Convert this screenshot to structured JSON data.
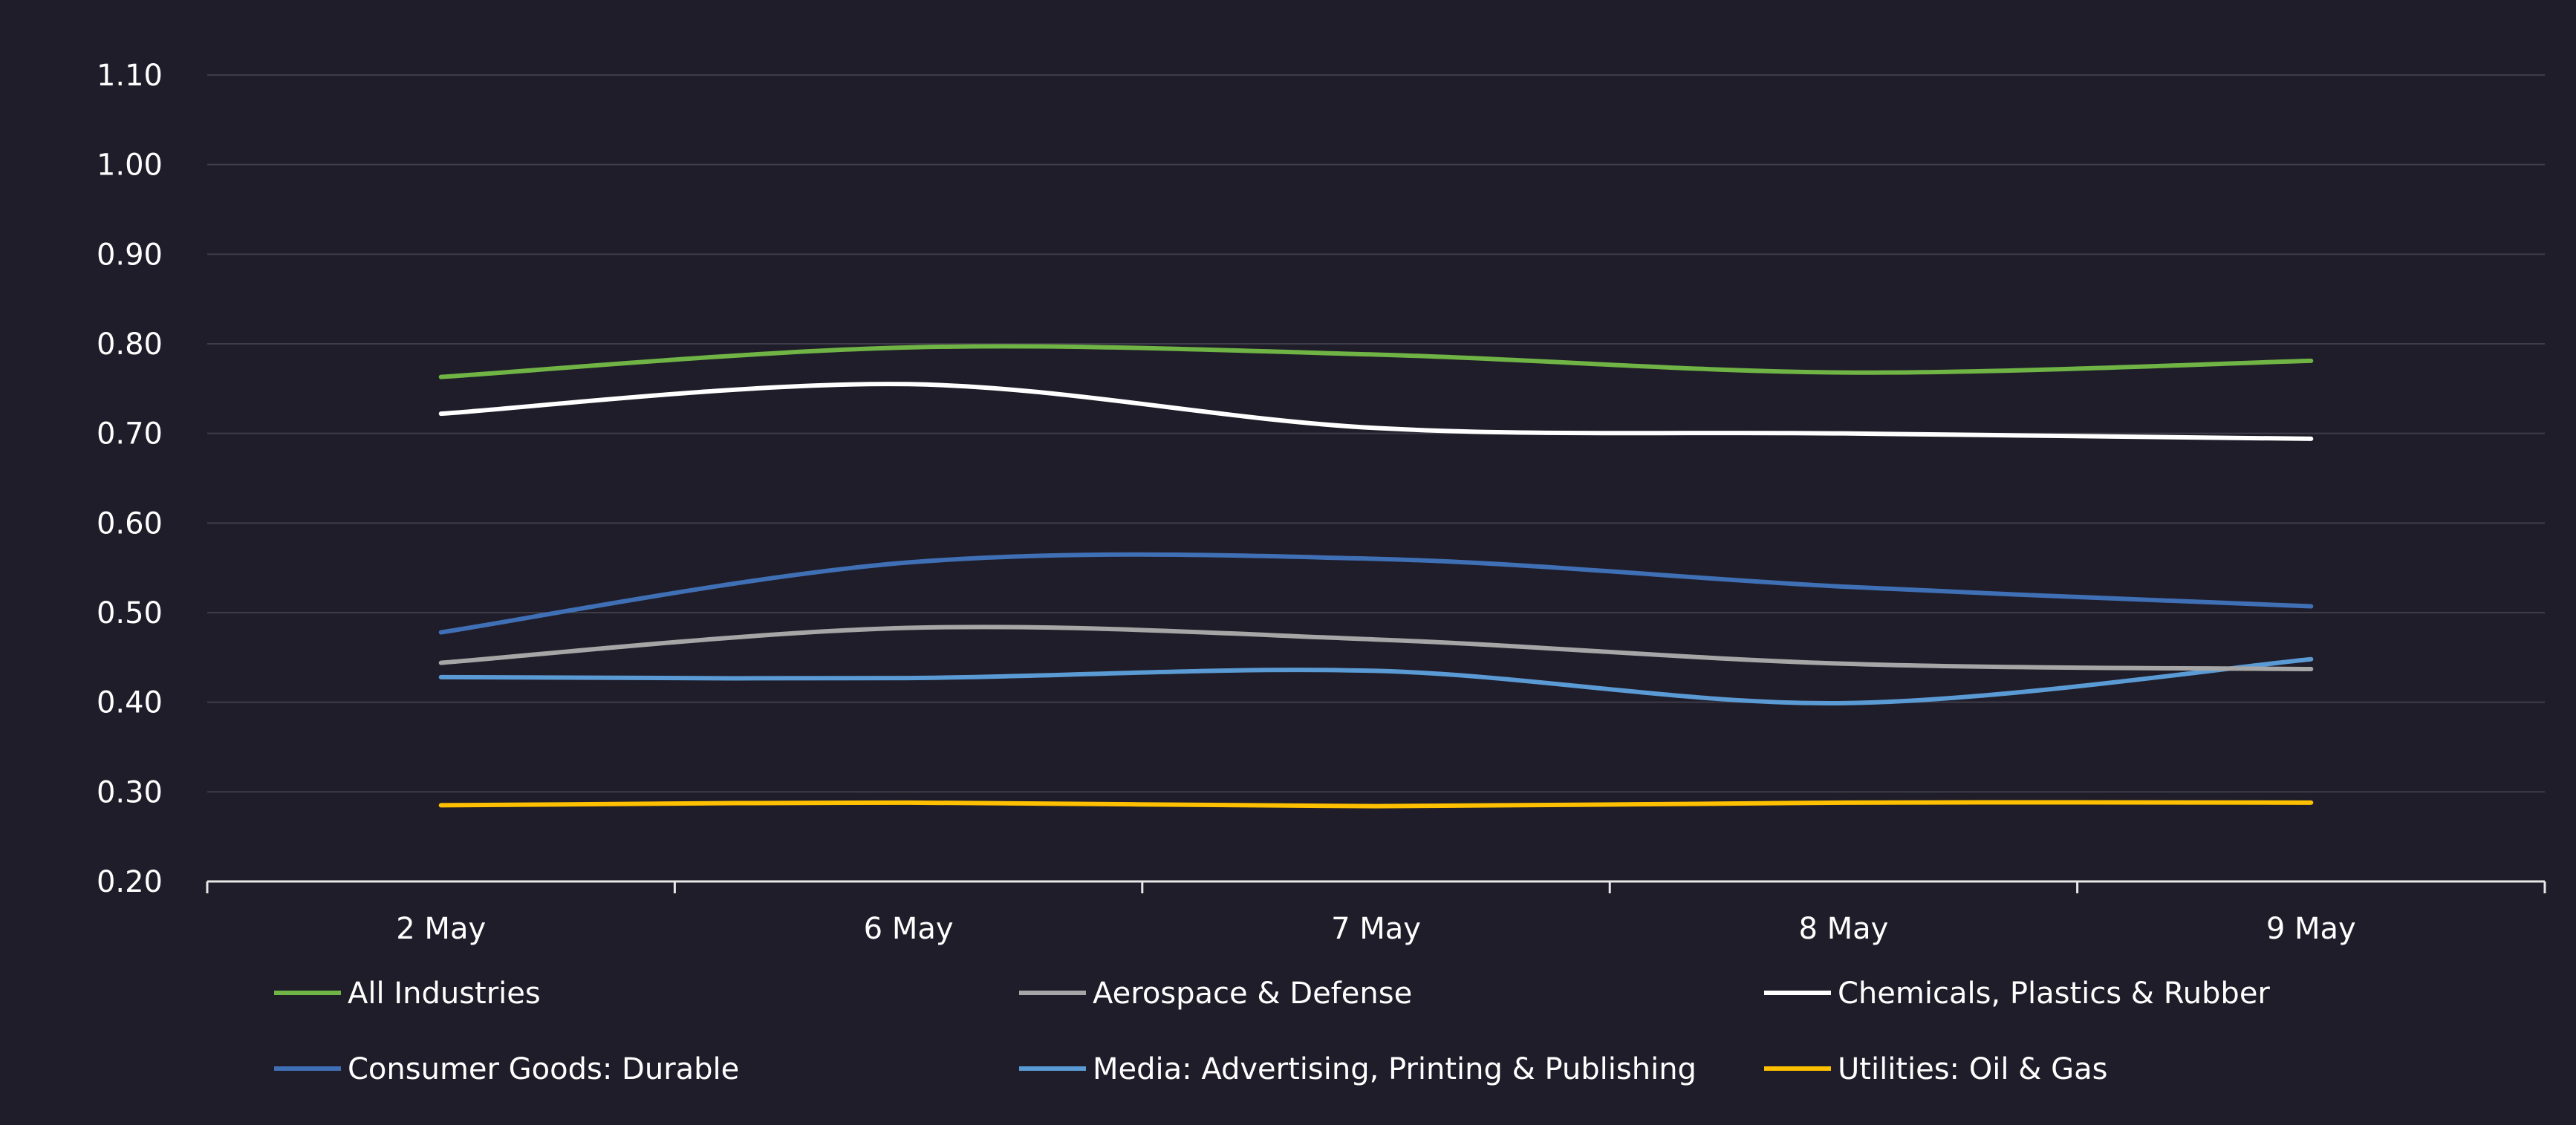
{
  "colors": {
    "background": "#1f1d29",
    "gridline": "#3f3d48",
    "axis": "#e8e8e8",
    "text": "#ffffff"
  },
  "chart_data": {
    "type": "line",
    "title": "",
    "xlabel": "",
    "ylabel": "",
    "categories": [
      "2 May",
      "6 May",
      "7 May",
      "8 May",
      "9 May"
    ],
    "ylim": [
      0.2,
      1.1
    ],
    "yticks": [
      "0.20",
      "0.30",
      "0.40",
      "0.50",
      "0.60",
      "0.70",
      "0.80",
      "0.90",
      "1.00",
      "1.10"
    ],
    "grid": true,
    "legend_position": "bottom",
    "smooth": true,
    "series": [
      {
        "name": "All Industries",
        "color": "#6fb444",
        "values": [
          0.763,
          0.796,
          0.788,
          0.768,
          0.781
        ]
      },
      {
        "name": "Aerospace & Defense",
        "color": "#a6a6a6",
        "values": [
          0.444,
          0.483,
          0.47,
          0.443,
          0.437
        ]
      },
      {
        "name": "Chemicals, Plastics & Rubber",
        "color": "#ffffff",
        "values": [
          0.722,
          0.755,
          0.706,
          0.7,
          0.694
        ]
      },
      {
        "name": "Consumer Goods: Durable",
        "color": "#3f6fb5",
        "values": [
          0.478,
          0.556,
          0.56,
          0.529,
          0.507
        ]
      },
      {
        "name": "Media: Advertising, Printing & Publishing",
        "color": "#5b9bd5",
        "values": [
          0.428,
          0.427,
          0.435,
          0.399,
          0.448
        ]
      },
      {
        "name": "Utilities: Oil & Gas",
        "color": "#ffc000",
        "values": [
          0.285,
          0.288,
          0.284,
          0.288,
          0.288
        ]
      }
    ]
  }
}
